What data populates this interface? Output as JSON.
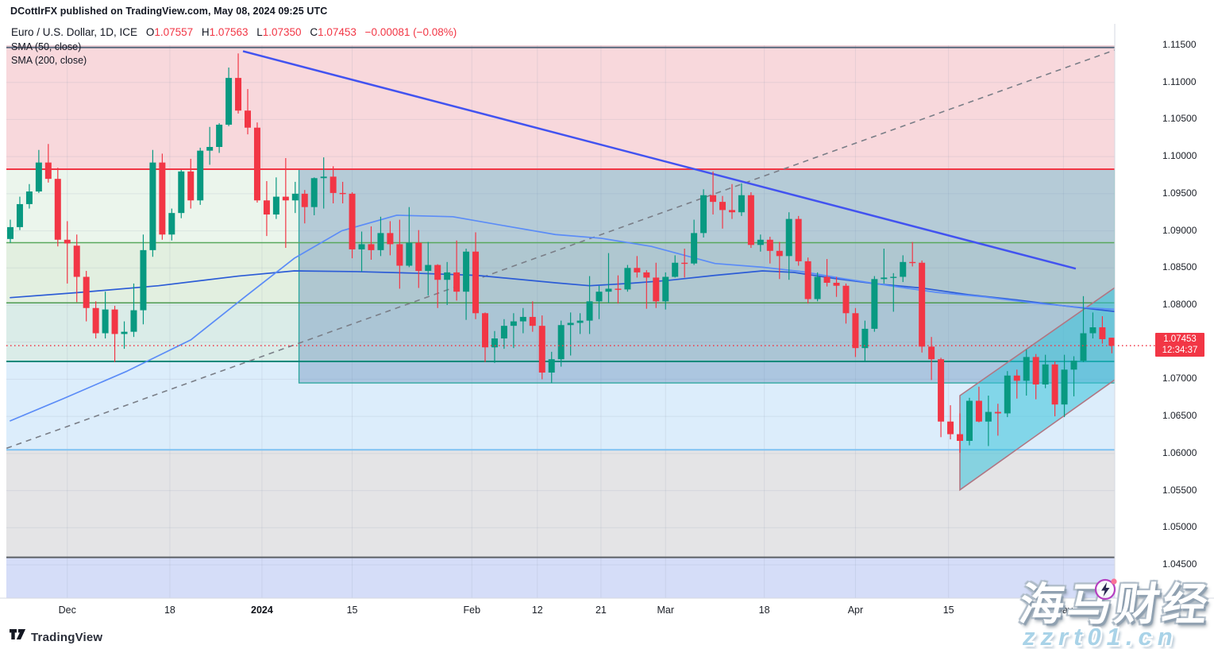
{
  "header": {
    "publish_line": "DCottlrFX published on TradingView.com, May 08, 2024 09:25 UTC",
    "symbol_title": "Euro / U.S. Dollar, 1D, ICE",
    "ohlc": {
      "o_label": "O",
      "o": "1.07557",
      "h_label": "H",
      "h": "1.07563",
      "l_label": "L",
      "l": "1.07350",
      "c_label": "C",
      "c": "1.07453"
    },
    "change": "−0.00081 (−0.08%)",
    "indicators": [
      "SMA (50, close)",
      "SMA (200, close)"
    ]
  },
  "price_axis": {
    "ticks": [
      "1.11500",
      "1.11000",
      "1.10500",
      "1.10000",
      "1.09500",
      "1.09000",
      "1.08500",
      "1.08000",
      "1.07500",
      "1.07000",
      "1.06500",
      "1.06000",
      "1.05500",
      "1.05000",
      "1.04500"
    ],
    "badge": {
      "price": "1.07453",
      "countdown": "12:34:37"
    }
  },
  "time_axis": {
    "labels": [
      {
        "t": "Dec",
        "i": 6.0
      },
      {
        "t": "18",
        "i": 16.8
      },
      {
        "t": "2024",
        "i": 26.5,
        "bold": true
      },
      {
        "t": "15",
        "i": 36.0
      },
      {
        "t": "Feb",
        "i": 48.6
      },
      {
        "t": "12",
        "i": 55.5
      },
      {
        "t": "21",
        "i": 62.2
      },
      {
        "t": "Mar",
        "i": 69.0
      },
      {
        "t": "18",
        "i": 79.4
      },
      {
        "t": "Apr",
        "i": 89.0
      },
      {
        "t": "15",
        "i": 98.8
      },
      {
        "t": "May",
        "i": 110.9
      },
      {
        "t": "13",
        "i": 117.5
      }
    ]
  },
  "watermark": {
    "line1": "海马财经",
    "line2": "zzrt01.cn"
  },
  "footer": {
    "brand": "TradingView"
  },
  "chart_data": {
    "type": "candlestick",
    "title": "Euro / U.S. Dollar",
    "timeframe": "1D",
    "exchange": "ICE",
    "current_price": 1.07453,
    "price_range": {
      "top": 1.115,
      "bottom": 1.0402
    },
    "colors": {
      "up": "#089981",
      "down": "#f23645",
      "sma50": "#5b8cf7",
      "sma200": "#2c5cd6",
      "trendline": "#4253f0",
      "dashed": "#7a7e87",
      "channel_fill": "rgba(56,195,218,0.55)",
      "channel_border": "#b17683",
      "grid": "rgba(145,155,175,0.18)",
      "badge_bg": "#f23645",
      "axis_border": "#d6d9e0",
      "dotted_price": "#f23645",
      "overlay_fill": "rgba(99,141,184,0.40)",
      "overlay_border": "#2fa8a0"
    },
    "zones": [
      {
        "name": "resistance-zone",
        "top": 1.115,
        "bottom": 1.0983,
        "fill": "#f8d8dc"
      },
      {
        "name": "upper-green-zone",
        "top": 1.0983,
        "bottom": 1.0884,
        "fill": "#ebf5ec"
      },
      {
        "name": "mid-green-zone",
        "top": 1.0884,
        "bottom": 1.0803,
        "fill": "#e2efe0"
      },
      {
        "name": "teal-green-zone",
        "top": 1.0803,
        "bottom": 1.0724,
        "fill": "#daece8"
      },
      {
        "name": "light-blue-zone",
        "top": 1.0724,
        "bottom": 1.0605,
        "fill": "#dcedfb"
      },
      {
        "name": "grey-zone",
        "top": 1.0605,
        "bottom": 1.046,
        "fill": "#e4e4e6"
      },
      {
        "name": "lavender-zone",
        "top": 1.046,
        "bottom": 1.0402,
        "fill": "#d5ddf8"
      }
    ],
    "levels": [
      {
        "price": 1.1147,
        "color": "#56687c",
        "w": 2
      },
      {
        "price": 1.0983,
        "color": "#f23645",
        "w": 2
      },
      {
        "price": 1.0884,
        "color": "#58a85c",
        "w": 1.5
      },
      {
        "price": 1.0803,
        "color": "#4d9a51",
        "w": 1.5
      },
      {
        "price": 1.0724,
        "color": "#00897b",
        "w": 2
      },
      {
        "price": 1.0605,
        "color": "#7fc2f2",
        "w": 2
      },
      {
        "price": 1.046,
        "color": "#5c6066",
        "w": 2
      }
    ],
    "overlay_box": {
      "from_i": 30.4,
      "to_i": 116.6,
      "top": 1.0983,
      "bottom": 1.0695
    },
    "channel": {
      "upper": [
        [
          100,
          1.0678
        ],
        [
          116.6,
          1.0826
        ]
      ],
      "lower": [
        [
          100,
          1.0551
        ],
        [
          116.6,
          1.0702
        ]
      ]
    },
    "trendlines": [
      {
        "name": "descending-trendline",
        "from": [
          24.5,
          1.1142
        ],
        "to": [
          112.2,
          1.0849
        ],
        "width": 2.5,
        "dash": ""
      },
      {
        "name": "ascending-dashed-trendline",
        "from": [
          -0.4,
          1.0607
        ],
        "to": [
          116.6,
          1.1145
        ],
        "width": 1.6,
        "dash": "7,6"
      }
    ],
    "sma50": [
      [
        0,
        1.0644
      ],
      [
        5.6,
        1.0674
      ],
      [
        12.3,
        1.0711
      ],
      [
        19,
        1.0753
      ],
      [
        24.8,
        1.0812
      ],
      [
        29.9,
        1.0863
      ],
      [
        34.9,
        1.09
      ],
      [
        40.7,
        1.0921
      ],
      [
        46.6,
        1.0919
      ],
      [
        52.4,
        1.0906
      ],
      [
        57.4,
        1.0895
      ],
      [
        62.2,
        1.089
      ],
      [
        67.5,
        1.0879
      ],
      [
        74.2,
        1.0856
      ],
      [
        79.2,
        1.0851
      ],
      [
        83.4,
        1.0845
      ],
      [
        87.5,
        1.0836
      ],
      [
        92.6,
        1.0826
      ],
      [
        97.6,
        1.0817
      ],
      [
        102.6,
        1.0811
      ],
      [
        107.6,
        1.0803
      ],
      [
        112.6,
        1.0797
      ],
      [
        116.5,
        1.0794
      ]
    ],
    "sma200": [
      [
        0,
        1.081
      ],
      [
        7.3,
        1.0817
      ],
      [
        15.6,
        1.0826
      ],
      [
        24,
        1.0839
      ],
      [
        29.9,
        1.0846
      ],
      [
        36.5,
        1.0845
      ],
      [
        42.4,
        1.0843
      ],
      [
        49.1,
        1.084
      ],
      [
        54.1,
        1.0834
      ],
      [
        57.4,
        1.083
      ],
      [
        61,
        1.0826
      ],
      [
        65,
        1.0829
      ],
      [
        69.1,
        1.0833
      ],
      [
        74.2,
        1.084
      ],
      [
        79.2,
        1.0846
      ],
      [
        82.5,
        1.0844
      ],
      [
        86.7,
        1.0836
      ],
      [
        90.9,
        1.0829
      ],
      [
        95.9,
        1.0823
      ],
      [
        100.9,
        1.0814
      ],
      [
        105.9,
        1.0807
      ],
      [
        110.9,
        1.0799
      ],
      [
        116.5,
        1.0791
      ]
    ],
    "candles": [
      [
        1.0889,
        1.0915,
        1.0884,
        1.0905
      ],
      [
        1.0905,
        1.0946,
        1.0901,
        1.0936
      ],
      [
        1.0936,
        1.0963,
        1.093,
        1.0953
      ],
      [
        1.0953,
        1.1009,
        1.0951,
        1.0992
      ],
      [
        1.0992,
        1.1017,
        1.0965,
        1.097
      ],
      [
        1.097,
        1.0985,
        1.0879,
        1.0888
      ],
      [
        1.0888,
        1.0913,
        1.0829,
        1.0883
      ],
      [
        1.088,
        1.0895,
        1.0804,
        1.0838
      ],
      [
        1.0838,
        1.0846,
        1.0778,
        1.0796
      ],
      [
        1.0796,
        1.0805,
        1.0755,
        1.0762
      ],
      [
        1.0762,
        1.0818,
        1.0755,
        1.0794
      ],
      [
        1.0794,
        1.0799,
        1.0723,
        1.0761
      ],
      [
        1.0761,
        1.0778,
        1.0741,
        1.0764
      ],
      [
        1.0764,
        1.0829,
        1.0757,
        1.0793
      ],
      [
        1.0793,
        1.0895,
        1.0774,
        1.0874
      ],
      [
        1.0874,
        1.1009,
        1.0865,
        1.0992
      ],
      [
        1.0992,
        1.1004,
        1.0888,
        1.0895
      ],
      [
        1.0895,
        1.093,
        1.0887,
        1.0924
      ],
      [
        1.0924,
        1.0982,
        1.0917,
        1.098
      ],
      [
        1.098,
        1.0997,
        1.093,
        1.0941
      ],
      [
        1.0941,
        1.1012,
        1.0935,
        1.1008
      ],
      [
        1.1008,
        1.104,
        1.0989,
        1.1013
      ],
      [
        1.1013,
        1.1045,
        1.1005,
        1.1043
      ],
      [
        1.1043,
        1.112,
        1.1041,
        1.1106
      ],
      [
        1.1106,
        1.1139,
        1.1058,
        1.1062
      ],
      [
        1.1062,
        1.1091,
        1.103,
        1.1039
      ],
      [
        1.1039,
        1.1046,
        1.0938,
        1.0941
      ],
      [
        1.0941,
        1.0967,
        1.0893,
        1.0922
      ],
      [
        1.0922,
        1.0972,
        1.0916,
        1.0946
      ],
      [
        1.0946,
        1.0998,
        1.0877,
        1.0941
      ],
      [
        1.0941,
        1.0966,
        1.0924,
        1.095
      ],
      [
        1.095,
        1.0955,
        1.091,
        1.0932
      ],
      [
        1.0932,
        1.0972,
        1.0921,
        1.0971
      ],
      [
        1.0971,
        1.0999,
        1.093,
        1.0973
      ],
      [
        1.0973,
        1.0987,
        1.0937,
        1.0951
      ],
      [
        1.0951,
        1.0966,
        1.0937,
        1.095
      ],
      [
        1.095,
        1.0952,
        1.0863,
        1.0875
      ],
      [
        1.0875,
        1.0899,
        1.0845,
        1.0882
      ],
      [
        1.0882,
        1.0906,
        1.0861,
        1.0874
      ],
      [
        1.0874,
        1.0919,
        1.0866,
        1.0897
      ],
      [
        1.0897,
        1.0913,
        1.0867,
        1.0882
      ],
      [
        1.0882,
        1.0915,
        1.0822,
        1.0853
      ],
      [
        1.0853,
        1.0932,
        1.0851,
        1.0884
      ],
      [
        1.0884,
        1.0901,
        1.0823,
        1.0846
      ],
      [
        1.0846,
        1.0885,
        1.0813,
        1.0854
      ],
      [
        1.0854,
        1.0855,
        1.0796,
        1.0834
      ],
      [
        1.0834,
        1.0858,
        1.08,
        1.0844
      ],
      [
        1.0844,
        1.0887,
        1.0806,
        1.0818
      ],
      [
        1.0818,
        1.0876,
        1.078,
        1.0872
      ],
      [
        1.0872,
        1.0898,
        1.0781,
        1.0789
      ],
      [
        1.0789,
        1.079,
        1.0723,
        1.0743
      ],
      [
        1.0743,
        1.0765,
        1.0722,
        1.0755
      ],
      [
        1.0755,
        1.0781,
        1.0741,
        1.0772
      ],
      [
        1.0772,
        1.0789,
        1.0742,
        1.0778
      ],
      [
        1.0778,
        1.0796,
        1.0762,
        1.0784
      ],
      [
        1.0784,
        1.0805,
        1.0764,
        1.0772
      ],
      [
        1.0772,
        1.0786,
        1.07,
        1.0709
      ],
      [
        1.0709,
        1.0737,
        1.0695,
        1.0727
      ],
      [
        1.0727,
        1.0779,
        1.0717,
        1.0773
      ],
      [
        1.0773,
        1.079,
        1.0732,
        1.0776
      ],
      [
        1.0776,
        1.0789,
        1.0761,
        1.0779
      ],
      [
        1.0779,
        1.0839,
        1.0761,
        1.0805
      ],
      [
        1.0805,
        1.0826,
        1.0781,
        1.0818
      ],
      [
        1.0818,
        1.087,
        1.0803,
        1.0822
      ],
      [
        1.0822,
        1.084,
        1.0802,
        1.0821
      ],
      [
        1.0821,
        1.0854,
        1.0818,
        1.085
      ],
      [
        1.085,
        1.0866,
        1.0837,
        1.0844
      ],
      [
        1.0844,
        1.0847,
        1.0795,
        1.0837
      ],
      [
        1.0837,
        1.0857,
        1.0796,
        1.0805
      ],
      [
        1.0805,
        1.0844,
        1.0794,
        1.0838
      ],
      [
        1.0838,
        1.0867,
        1.0837,
        1.0857
      ],
      [
        1.0857,
        1.0876,
        1.0837,
        1.0856
      ],
      [
        1.0856,
        1.0915,
        1.0854,
        1.0897
      ],
      [
        1.0897,
        1.0956,
        1.0891,
        1.0948
      ],
      [
        1.0948,
        1.098,
        1.0922,
        1.0939
      ],
      [
        1.0939,
        1.0947,
        1.0903,
        1.0928
      ],
      [
        1.0928,
        1.0963,
        1.0916,
        1.0925
      ],
      [
        1.0925,
        1.0964,
        1.092,
        1.0948
      ],
      [
        1.0948,
        1.0952,
        1.0877,
        1.0881
      ],
      [
        1.0881,
        1.0895,
        1.0872,
        1.0888
      ],
      [
        1.0888,
        1.0892,
        1.0856,
        1.0873
      ],
      [
        1.0873,
        1.0885,
        1.0835,
        1.0866
      ],
      [
        1.0866,
        1.0925,
        1.0834,
        1.0916
      ],
      [
        1.0916,
        1.092,
        1.0853,
        1.0859
      ],
      [
        1.0859,
        1.0864,
        1.0802,
        1.0808
      ],
      [
        1.0808,
        1.0844,
        1.0805,
        1.0838
      ],
      [
        1.0838,
        1.0862,
        1.0825,
        1.083
      ],
      [
        1.083,
        1.0838,
        1.0811,
        1.0826
      ],
      [
        1.0826,
        1.0829,
        1.0775,
        1.0789
      ],
      [
        1.0789,
        1.0796,
        1.073,
        1.0742
      ],
      [
        1.0742,
        1.0779,
        1.0725,
        1.0768
      ],
      [
        1.0768,
        1.0839,
        1.0764,
        1.0835
      ],
      [
        1.0835,
        1.0876,
        1.0829,
        1.0837
      ],
      [
        1.0837,
        1.0843,
        1.0791,
        1.0838
      ],
      [
        1.0838,
        1.0867,
        1.0831,
        1.0858
      ],
      [
        1.0858,
        1.0885,
        1.0852,
        1.0857
      ],
      [
        1.0857,
        1.086,
        1.0736,
        1.0744
      ],
      [
        1.0744,
        1.0757,
        1.0699,
        1.0727
      ],
      [
        1.0727,
        1.0729,
        1.0622,
        1.0643
      ],
      [
        1.0643,
        1.0665,
        1.0619,
        1.0626
      ],
      [
        1.0626,
        1.0654,
        1.0601,
        1.0617
      ],
      [
        1.0617,
        1.0675,
        1.0611,
        1.0671
      ],
      [
        1.0671,
        1.069,
        1.0642,
        1.0643
      ],
      [
        1.0643,
        1.0678,
        1.061,
        1.0656
      ],
      [
        1.0656,
        1.0667,
        1.0624,
        1.0654
      ],
      [
        1.0654,
        1.0711,
        1.0649,
        1.0705
      ],
      [
        1.0705,
        1.0713,
        1.0674,
        1.0698
      ],
      [
        1.0698,
        1.074,
        1.0678,
        1.073
      ],
      [
        1.073,
        1.0734,
        1.0673,
        1.0693
      ],
      [
        1.0693,
        1.0733,
        1.0688,
        1.072
      ],
      [
        1.072,
        1.0724,
        1.065,
        1.0666
      ],
      [
        1.0666,
        1.0733,
        1.0649,
        1.0713
      ],
      [
        1.0713,
        1.0731,
        1.0677,
        1.0725
      ],
      [
        1.0725,
        1.0812,
        1.0723,
        1.0762
      ],
      [
        1.0762,
        1.079,
        1.0755,
        1.077
      ],
      [
        1.077,
        1.0785,
        1.0748,
        1.0754
      ],
      [
        1.0756,
        1.0756,
        1.0735,
        1.0745
      ]
    ]
  }
}
